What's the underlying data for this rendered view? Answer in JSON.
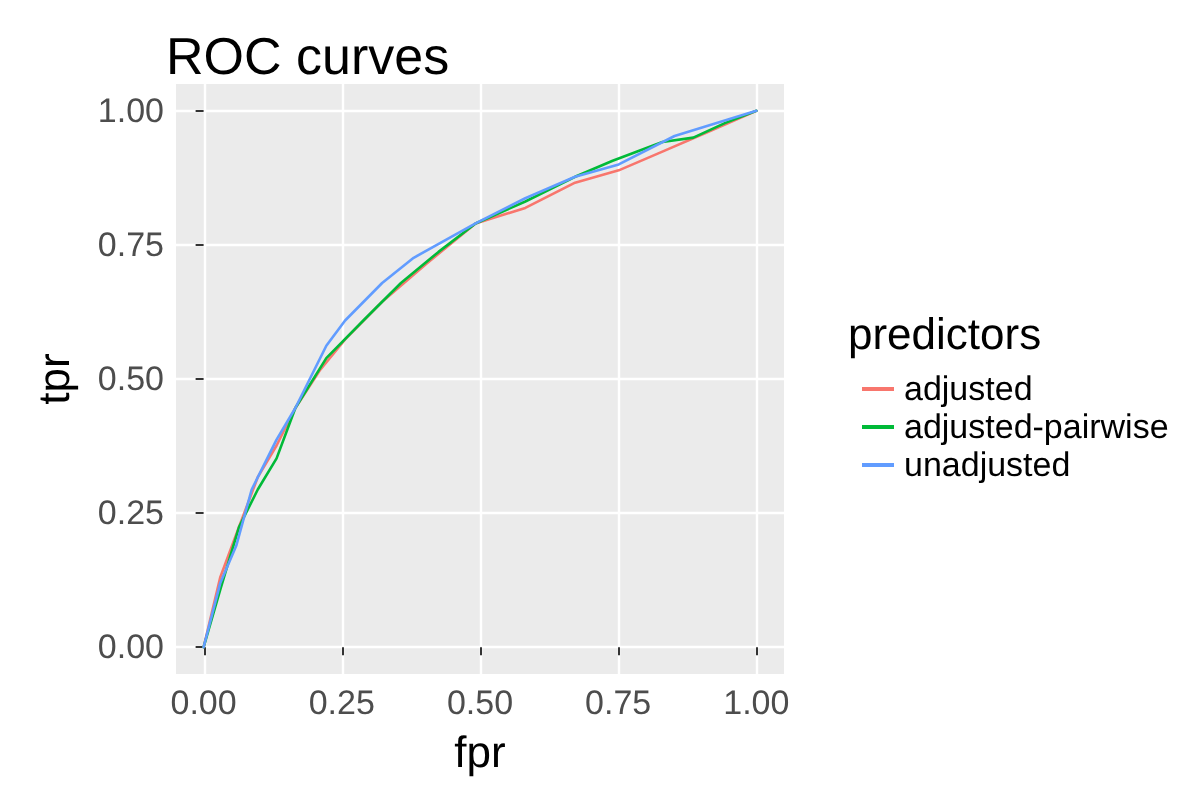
{
  "chart_data": {
    "type": "line",
    "title": "ROC curves",
    "xlabel": "fpr",
    "ylabel": "tpr",
    "legend_title": "predictors",
    "legend": "right",
    "grid": true,
    "marker": "none",
    "line_style": "solid",
    "xlim": [
      -0.05,
      1.05
    ],
    "ylim": [
      -0.05,
      1.05
    ],
    "xticks": [
      {
        "value": 0,
        "label": "0.00"
      },
      {
        "value": 0.25,
        "label": "0.25"
      },
      {
        "value": 0.5,
        "label": "0.50"
      },
      {
        "value": 0.75,
        "label": "0.75"
      },
      {
        "value": 1,
        "label": "1.00"
      }
    ],
    "yticks": [
      {
        "value": 0,
        "label": "0.00"
      },
      {
        "value": 0.25,
        "label": "0.25"
      },
      {
        "value": 0.5,
        "label": "0.50"
      },
      {
        "value": 0.75,
        "label": "0.75"
      },
      {
        "value": 1,
        "label": "1.00"
      }
    ],
    "series": [
      {
        "name": "adjusted",
        "color": "#f8766d",
        "x": [
          0,
          0.03,
          0.064,
          0.098,
          0.132,
          0.166,
          0.21,
          0.256,
          0.323,
          0.402,
          0.492,
          0.582,
          0.672,
          0.751,
          0.83,
          0.909,
          1
        ],
        "values": [
          0,
          0.13,
          0.224,
          0.317,
          0.376,
          0.446,
          0.516,
          0.574,
          0.644,
          0.714,
          0.79,
          0.819,
          0.866,
          0.889,
          0.924,
          0.959,
          1
        ]
      },
      {
        "name": "adjusted-pairwise",
        "color": "#00ba38",
        "x": [
          0,
          0.03,
          0.064,
          0.098,
          0.132,
          0.166,
          0.222,
          0.289,
          0.357,
          0.425,
          0.492,
          0.582,
          0.672,
          0.74,
          0.83,
          0.886,
          0.943,
          1
        ],
        "values": [
          0,
          0.107,
          0.224,
          0.294,
          0.352,
          0.446,
          0.539,
          0.609,
          0.679,
          0.737,
          0.79,
          0.831,
          0.877,
          0.907,
          0.942,
          0.95,
          0.977,
          1
        ]
      },
      {
        "name": "unadjusted",
        "color": "#619cff",
        "x": [
          0,
          0.03,
          0.059,
          0.087,
          0.132,
          0.166,
          0.222,
          0.256,
          0.323,
          0.38,
          0.492,
          0.582,
          0.672,
          0.751,
          0.852,
          1
        ],
        "values": [
          0,
          0.119,
          0.189,
          0.294,
          0.387,
          0.446,
          0.562,
          0.609,
          0.679,
          0.726,
          0.79,
          0.837,
          0.877,
          0.9,
          0.953,
          1
        ]
      }
    ]
  }
}
